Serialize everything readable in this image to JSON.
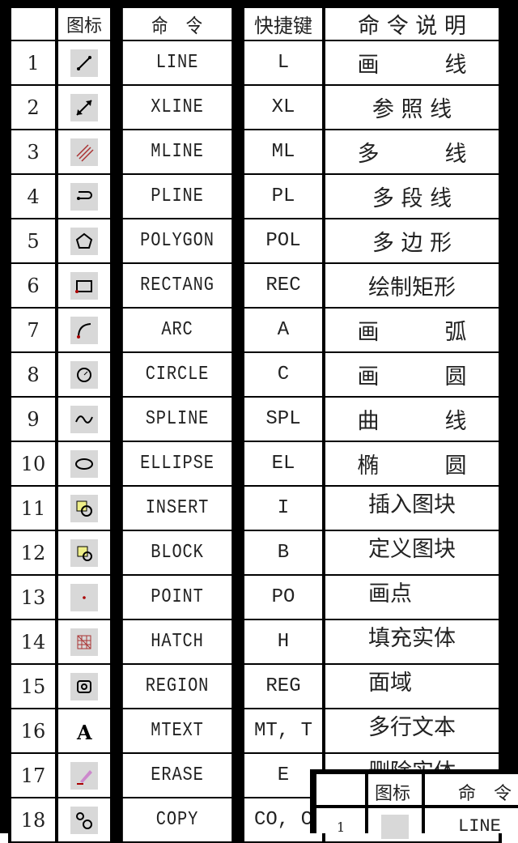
{
  "headers": {
    "icon": "图标",
    "command": "命　令",
    "shortcut": "快捷键",
    "description": "命 令 说 明"
  },
  "rows": [
    {
      "num": "1",
      "icon": "line-icon",
      "command": "LINE",
      "shortcut": "L",
      "description": "画　　　线"
    },
    {
      "num": "2",
      "icon": "xline-icon",
      "command": "XLINE",
      "shortcut": "XL",
      "description": "参 照 线"
    },
    {
      "num": "3",
      "icon": "mline-icon",
      "command": "MLINE",
      "shortcut": "ML",
      "description": "多　　　线"
    },
    {
      "num": "4",
      "icon": "pline-icon",
      "command": "PLINE",
      "shortcut": "PL",
      "description": "多 段 线"
    },
    {
      "num": "5",
      "icon": "polygon-icon",
      "command": "POLYGON",
      "shortcut": "POL",
      "description": "多 边 形"
    },
    {
      "num": "6",
      "icon": "rectangle-icon",
      "command": "RECTANG",
      "shortcut": "REC",
      "description": "绘制矩形"
    },
    {
      "num": "7",
      "icon": "arc-icon",
      "command": "ARC",
      "shortcut": "A",
      "description": "画　　　弧"
    },
    {
      "num": "8",
      "icon": "circle-icon",
      "command": "CIRCLE",
      "shortcut": "C",
      "description": "画　　　圆"
    },
    {
      "num": "9",
      "icon": "spline-icon",
      "command": "SPLINE",
      "shortcut": "SPL",
      "description": "曲　　　线"
    },
    {
      "num": "10",
      "icon": "ellipse-icon",
      "command": "ELLIPSE",
      "shortcut": "EL",
      "description": "椭　　　圆"
    },
    {
      "num": "11",
      "icon": "insert-block-icon",
      "command": "INSERT",
      "shortcut": "I",
      "description": "插入图块"
    },
    {
      "num": "12",
      "icon": "block-icon",
      "command": "BLOCK",
      "shortcut": "B",
      "description": "定义图块"
    },
    {
      "num": "13",
      "icon": "point-icon",
      "command": "POINT",
      "shortcut": "PO",
      "description": "画点　　"
    },
    {
      "num": "14",
      "icon": "hatch-icon",
      "command": "HATCH",
      "shortcut": "H",
      "description": "填充实体"
    },
    {
      "num": "15",
      "icon": "region-icon",
      "command": "REGION",
      "shortcut": "REG",
      "description": "面域　　"
    },
    {
      "num": "16",
      "icon": "mtext-icon",
      "command": "MTEXT",
      "shortcut": "MT, T",
      "description": "多行文本"
    },
    {
      "num": "17",
      "icon": "erase-icon",
      "command": "ERASE",
      "shortcut": "E",
      "description": "删除实体"
    },
    {
      "num": "18",
      "icon": "copy-icon",
      "command": "COPY",
      "shortcut": "CO, C",
      "description": ""
    }
  ],
  "overlay": {
    "icon_header": "图标",
    "command_header": "命　令",
    "row_num": "1",
    "row_command": "LINE"
  }
}
